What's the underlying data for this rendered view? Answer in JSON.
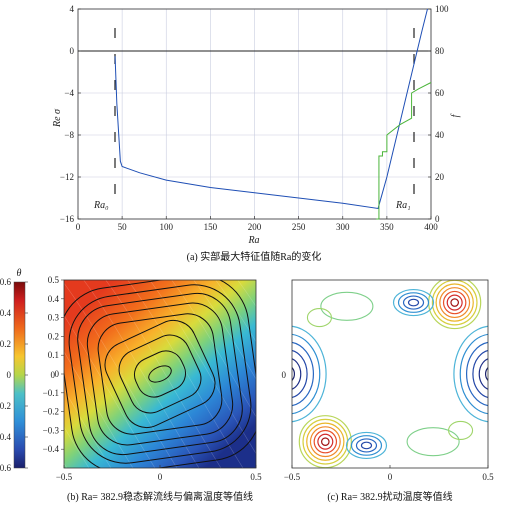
{
  "panel_a": {
    "caption": "(a) 实部最大特征值随Ra的变化",
    "left_axis_label": "Re σ",
    "right_axis_label": "f",
    "x_axis_label": "Ra",
    "annot_ra0": "Ra₀",
    "annot_ra1": "Ra₁",
    "x_ticks": [
      "0",
      "50",
      "100",
      "150",
      "200",
      "250",
      "300",
      "350",
      "400"
    ],
    "y_left_ticks": [
      "4",
      "0",
      "−4",
      "−8",
      "−12",
      "−16"
    ],
    "y_right_ticks": [
      "100",
      "80",
      "60",
      "40",
      "20",
      "0"
    ]
  },
  "panel_b": {
    "caption": "(b) Ra= 382.9稳态解流线与偏离温度等值线",
    "colorbar_label": "θ",
    "colorbar_ticks": [
      "0.6",
      "0.4",
      "0.2",
      "0",
      "−0.2",
      "−0.4",
      "−0.6"
    ],
    "x_ticks": [
      "−0.5",
      "0",
      "0.5"
    ],
    "y_ticks": [
      "0.5",
      "0.4",
      "0.3",
      "0.2",
      "0.1",
      "0",
      "−0.1",
      "−0.2",
      "−0.3",
      "−0.4"
    ],
    "y_mid_label": "0"
  },
  "panel_c": {
    "caption": "(c) Ra= 382.9扰动温度等值线",
    "x_ticks": [
      "−0.5",
      "0",
      "0.5"
    ],
    "y_mid_label": "0"
  },
  "colors": {
    "re_sigma": "#1f4fb5",
    "frequency": "#4bb53a",
    "axis": "#333333"
  },
  "chart_data": [
    {
      "type": "line",
      "title": "(a) 实部最大特征值随Ra的变化",
      "xlabel": "Ra",
      "ylabel": "Re σ",
      "y2label": "f",
      "xlim": [
        0,
        400
      ],
      "ylim": [
        -16,
        4
      ],
      "y2lim": [
        0,
        100
      ],
      "grid": true,
      "series": [
        {
          "axis": "left",
          "x": [
            42,
            44,
            48,
            50,
            70,
            100,
            150,
            200,
            250,
            300,
            340,
            350,
            360,
            370,
            380,
            390,
            396
          ],
          "y": [
            -0.5,
            -5,
            -10.5,
            -11,
            -11.6,
            -12.3,
            -13,
            -13.5,
            -14,
            -14.5,
            -15,
            -12,
            -8.5,
            -5,
            -1.5,
            2,
            4
          ]
        },
        {
          "axis": "right",
          "x": [
            338,
            341,
            341,
            345,
            345,
            350,
            350,
            365,
            378,
            378,
            386,
            400
          ],
          "y": [
            0,
            0,
            30,
            30,
            32,
            32,
            40,
            45,
            48,
            60,
            62,
            65
          ]
        }
      ],
      "annotations": [
        "Ra₀",
        "Ra₁"
      ]
    },
    {
      "type": "heatmap",
      "title": "(b) Ra= 382.9稳态解流线与偏离温度等值线",
      "colorbar_label": "θ",
      "colorbar_range": [
        -0.6,
        0.6
      ],
      "xlim": [
        -0.5,
        0.5
      ],
      "ylim": [
        -0.5,
        0.5
      ]
    },
    {
      "type": "heatmap",
      "title": "(c) Ra= 382.9扰动温度等值线",
      "xlim": [
        -0.5,
        0.5
      ],
      "ylim": [
        -0.5,
        0.5
      ]
    }
  ]
}
